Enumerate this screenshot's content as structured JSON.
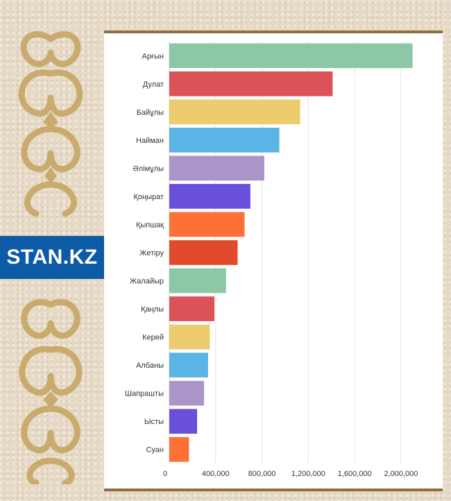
{
  "brand": {
    "logo_text": "STAN.KZ",
    "logo_color": "#0d5aa7"
  },
  "decor": {
    "ornament_color": "#c9ab6e",
    "frame_color": "#8d6e3c"
  },
  "chart_data": {
    "type": "bar",
    "orientation": "horizontal",
    "categories": [
      "Арғын",
      "Дулат",
      "Байұлы",
      "Найман",
      "Әлімұлы",
      "Қоңырат",
      "Қыпшақ",
      "Жетіру",
      "Жалайыр",
      "Қаңлы",
      "Керей",
      "Албаны",
      "Шапрашты",
      "Ысты",
      "Суан"
    ],
    "values": [
      2100000,
      1410000,
      1130000,
      950000,
      820000,
      700000,
      650000,
      590000,
      490000,
      390000,
      350000,
      335000,
      300000,
      240000,
      170000
    ],
    "colors": [
      "#8dc7a6",
      "#db5358",
      "#eccc6e",
      "#5bb4e6",
      "#ab95c8",
      "#6a4fdc",
      "#fd7036",
      "#e14b2b",
      "#8dc7a6",
      "#db5358",
      "#eccc6e",
      "#5bb4e6",
      "#ab95c8",
      "#6a4fdc",
      "#fd7036"
    ],
    "xlim": [
      0,
      2300000
    ],
    "xticks": [
      0,
      400000,
      800000,
      1200000,
      1600000,
      2000000
    ],
    "xtick_labels": [
      "0",
      "400,000",
      "800,000",
      "1,200,000",
      "1,600,000",
      "2,000,000"
    ],
    "grid": true
  }
}
